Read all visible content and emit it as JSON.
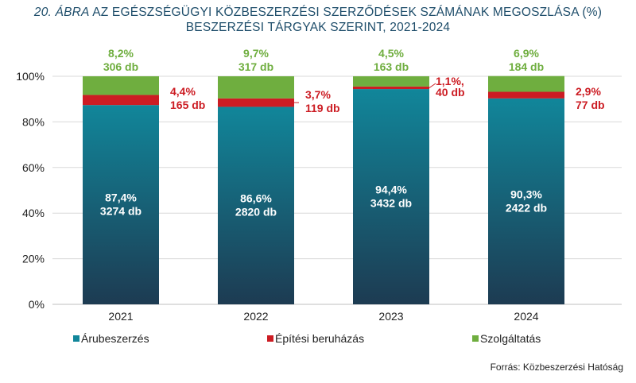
{
  "title": {
    "fig_label": "20. ÁBRA",
    "line1_rest": " AZ EGÉSZSÉGÜGYI KÖZBESZERZÉSI SZERZŐDÉSEK SZÁMÁNAK MEGOSZLÁSA (%)",
    "line2": "BESZERZÉSI TÁRGYAK SZERINT, 2021-2024"
  },
  "source": "Forrás: Közbeszerzési Hatóság",
  "colors": {
    "arubeszerzes_top": "#11869a",
    "arubeszerzes_bottom": "#1d3b52",
    "epitesi": "#cc1c23",
    "szolgaltatas": "#6fae3f",
    "axis_text": "#222222",
    "grid": "#d8d8d8"
  },
  "chart_data": {
    "type": "bar",
    "stacked": true,
    "categories": [
      "2021",
      "2022",
      "2023",
      "2024"
    ],
    "ylim": [
      0,
      100
    ],
    "yticks": [
      0,
      20,
      40,
      60,
      80,
      100
    ],
    "ytick_labels": [
      "0%",
      "20%",
      "40%",
      "60%",
      "80%",
      "100%"
    ],
    "legend_position": "bottom",
    "series": [
      {
        "name": "Árubeszerzés",
        "color": "#11869a",
        "values": [
          87.4,
          86.6,
          94.4,
          90.3
        ],
        "pct_labels": [
          "87,4%",
          "86,6%",
          "94,4%",
          "90,3%"
        ],
        "count_labels": [
          "3274 db",
          "2820 db",
          "3432 db",
          "2422 db"
        ]
      },
      {
        "name": "Építési beruházás",
        "color": "#cc1c23",
        "values": [
          4.4,
          3.7,
          1.1,
          2.9
        ],
        "pct_labels": [
          "4,4%",
          "3,7%",
          "1,1%,",
          "2,9%"
        ],
        "count_labels": [
          "165 db",
          "119 db",
          "40 db",
          "77 db"
        ]
      },
      {
        "name": "Szolgáltatás",
        "color": "#6fae3f",
        "values": [
          8.2,
          9.7,
          4.5,
          6.9
        ],
        "pct_labels": [
          "8,2%",
          "9,7%",
          "4,5%",
          "6,9%"
        ],
        "count_labels": [
          "306 db",
          "317 db",
          "163 db",
          "184 db"
        ]
      }
    ]
  }
}
